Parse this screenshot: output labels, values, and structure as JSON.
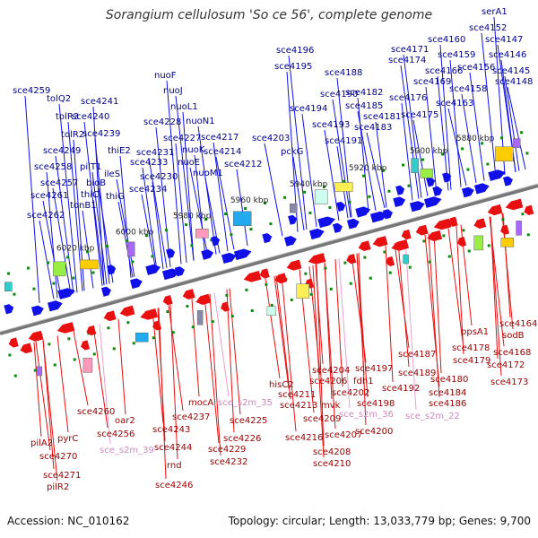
{
  "title": "Sorangium cellulosum 'So ce 56', complete genome",
  "footer": {
    "accession": "Accession: NC_010162",
    "summary": "Topology: circular; Length: 13,033,779 bp; Genes: 9,700"
  },
  "colors": {
    "forward": "#1010e8",
    "reverse": "#e81010",
    "rna": "#e8a0d0",
    "backbone": "#777777",
    "tick": "#118811"
  },
  "ticks": [
    "5880 kbp",
    "5900 kbp",
    "5920 kbp",
    "5940 kbp",
    "5960 kbp",
    "5980 kbp",
    "6000 kbp",
    "6020 kbp"
  ],
  "top_genes": [
    "serA1",
    "sce4152",
    "sce4147",
    "sce4160",
    "sce4146",
    "sce4171",
    "sce4159",
    "sce4145",
    "sce4174",
    "sce4166",
    "sce4156",
    "sce4148",
    "sce4169",
    "sce4158",
    "sce4163",
    "sce4176",
    "sce4175",
    "sce4196",
    "sce4195",
    "sce4188",
    "sce4190",
    "sce4182",
    "sce4194",
    "sce4185",
    "sce4181",
    "sce4193",
    "sce4183",
    "sce4191",
    "nuoF",
    "nuoJ",
    "nuoL1",
    "sce4228",
    "nuoN1",
    "sce4227",
    "sce4217",
    "sce4231",
    "nuoK",
    "sce4233",
    "nuoE",
    "sce4230",
    "nuoM1",
    "sce4214",
    "sce4212",
    "sce4234",
    "sce4203",
    "pckG",
    "sce4259",
    "tolQ2",
    "sce4241",
    "tolR3",
    "sce4240",
    "tolR2",
    "sce4239",
    "sce4249",
    "thiE2",
    "pilT1",
    "ileS",
    "sce4258",
    "bioB",
    "sce4257",
    "thiC",
    "thiG",
    "sce4261",
    "tonB1",
    "sce4262"
  ],
  "bottom_genes": [
    "sce4164",
    "sodB",
    "sce4168",
    "sce4172",
    "ppsA1",
    "sce4178",
    "sce4179",
    "sce4173",
    "sce4187",
    "sce4180",
    "sce4189",
    "sce4184",
    "sce4192",
    "sce4186",
    "sce4197",
    "fdh1",
    "sce_s2m_22",
    "hisC2",
    "sce4204",
    "sce4206",
    "sce4211",
    "sce4202",
    "sce4198",
    "sce4213",
    "mvk",
    "sce_s2m_36",
    "sce4209",
    "sce4200",
    "sce4207",
    "sce4216",
    "sce4208",
    "sce4210",
    "sce_s2m_35",
    "mocA",
    "sce4225",
    "sce4237",
    "sce4226",
    "sce4243",
    "sce4229",
    "sce4244",
    "sce4232",
    "sce4260",
    "oar2",
    "pyrC",
    "sce4256",
    "pilA2",
    "sce_s2m_39",
    "sce4270",
    "rnd",
    "sce4271",
    "pilR2",
    "sce4246"
  ]
}
